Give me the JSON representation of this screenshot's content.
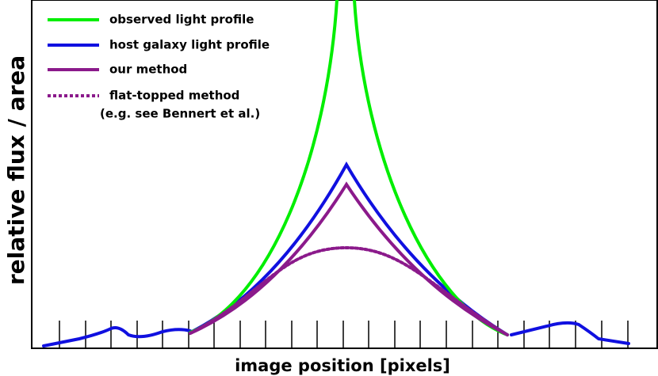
{
  "legend": [
    "observed light profile",
    "host galaxy light profile",
    "our method",
    "flat-topped method"
  ],
  "legend_note": "(e.g. see Bennert et al.)",
  "x_label": "image position [pixels]",
  "y_label": "relative flux / area"
}
